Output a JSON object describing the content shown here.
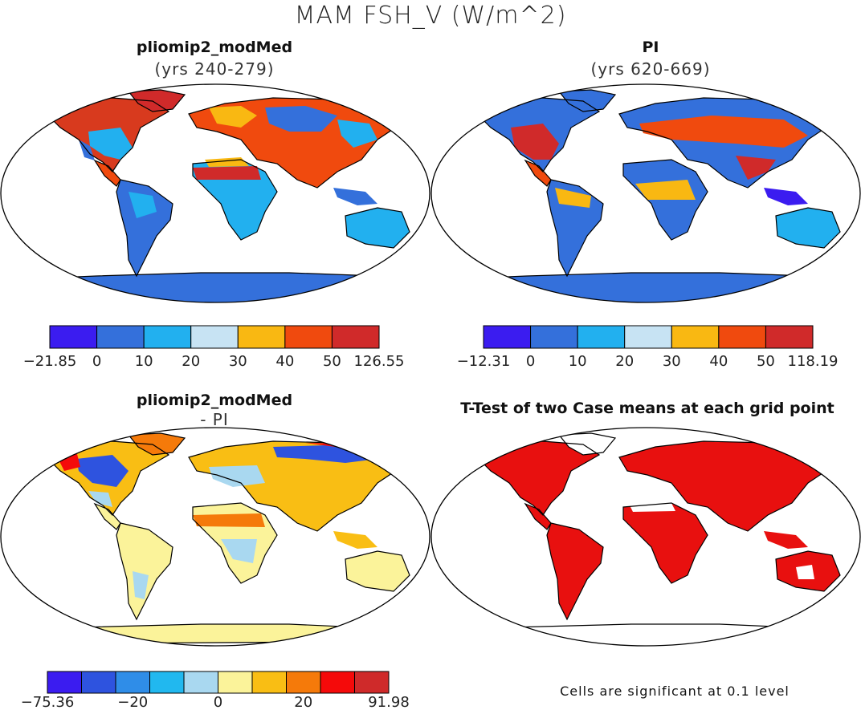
{
  "title": "MAM FSH_V (W/m^2)",
  "panels": [
    {
      "id": "p1",
      "title": "pliomip2_modMed",
      "subtitle": "(yrs 240-279)"
    },
    {
      "id": "p2",
      "title": "PI",
      "subtitle": "(yrs 620-669)"
    },
    {
      "id": "p3",
      "title": "pliomip2_modMed",
      "subtitle": "- PI"
    },
    {
      "id": "p4",
      "title": "T-Test of two Case means at each grid point",
      "subtitle": ""
    }
  ],
  "colorbars": [
    {
      "labels": [
        "-21.85",
        "0",
        "10",
        "20",
        "30",
        "40",
        "50",
        "126.55"
      ],
      "colors": [
        "#3b1cf0",
        "#3470db",
        "#22b0ef",
        "#c7e3f3",
        "#f9b812",
        "#f04a0e",
        "#d02a2a"
      ]
    },
    {
      "labels": [
        "-12.31",
        "0",
        "10",
        "20",
        "30",
        "40",
        "50",
        "118.19"
      ],
      "colors": [
        "#3b1cf0",
        "#3470db",
        "#22b0ef",
        "#c7e3f3",
        "#f9b812",
        "#f04a0e",
        "#d02a2a"
      ]
    },
    {
      "labels": [
        "-75.36",
        "",
        "-20",
        "",
        "0",
        "",
        "20",
        "",
        "91.98"
      ],
      "colors": [
        "#3b1cf0",
        "#2e53df",
        "#2f8de8",
        "#21b8ef",
        "#a9d8f0",
        "#fbf39a",
        "#f9be14",
        "#f57a0a",
        "#f50a0a",
        "#cf2a2a"
      ]
    }
  ],
  "note": "Cells are significant at 0.1 level",
  "colors": {
    "t_test_fill": "#e8100f"
  }
}
